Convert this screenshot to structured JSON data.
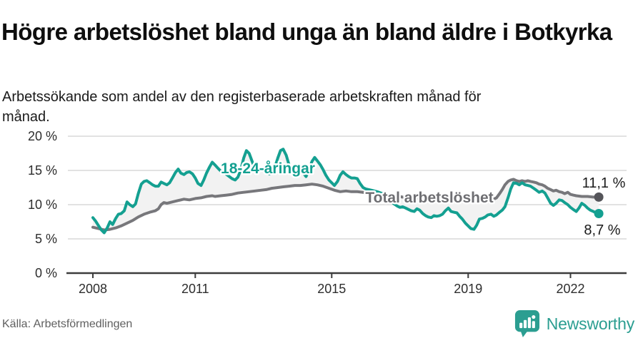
{
  "header": {
    "title": "Högre arbetslöshet bland unga än bland äldre i Botkyrka",
    "subtitle": "Arbetssökande som andel av den registerbaserade arbetskraften månad för månad."
  },
  "footer": {
    "source": "Källa: Arbetsförmedlingen",
    "brand": "Newsworthy"
  },
  "colors": {
    "accent_teal": "#14a091",
    "line_gray": "#77777b",
    "dot_gray": "#55555a",
    "label_gray": "#6e6e72",
    "band_fill": "#f2f2f2",
    "gridline": "#d9d9d9",
    "axis": "#3c3c3c",
    "brand_teal": "#2b9e91"
  },
  "chart_data": {
    "type": "line",
    "title": "Högre arbetslöshet bland unga än bland äldre i Botkyrka",
    "subtitle": "Arbetssökande som andel av den registerbaserade arbetskraften månad för månad.",
    "xlabel": "",
    "ylabel": "",
    "ylim": [
      0,
      20
    ],
    "xlim": [
      2008,
      2022.95
    ],
    "grid": true,
    "legend_position": "inline-labels",
    "y_tick_labels": [
      "20 %",
      "15 %",
      "10 %",
      "5 %",
      "0 %"
    ],
    "y_tick_values": [
      20,
      15,
      10,
      5,
      0
    ],
    "x_tick_labels": [
      "2008",
      "2011",
      "2015",
      "2019",
      "2022"
    ],
    "x_tick_years": [
      2008,
      2011,
      2015,
      2019,
      2022
    ],
    "series": [
      {
        "name": "18-24-åringar",
        "color": "#14a091",
        "dot_color": "#14a091",
        "end_label": "8,7 %",
        "end_value": 8.7,
        "points": [
          [
            2008.0,
            8.1
          ],
          [
            2008.08,
            7.6
          ],
          [
            2008.17,
            6.9
          ],
          [
            2008.25,
            6.3
          ],
          [
            2008.33,
            5.9
          ],
          [
            2008.42,
            6.6
          ],
          [
            2008.5,
            7.5
          ],
          [
            2008.58,
            7.1
          ],
          [
            2008.67,
            8.0
          ],
          [
            2008.75,
            8.6
          ],
          [
            2008.83,
            8.7
          ],
          [
            2008.92,
            9.1
          ],
          [
            2009.0,
            10.4
          ],
          [
            2009.08,
            10.0
          ],
          [
            2009.17,
            9.7
          ],
          [
            2009.25,
            10.1
          ],
          [
            2009.33,
            11.6
          ],
          [
            2009.42,
            13.0
          ],
          [
            2009.5,
            13.4
          ],
          [
            2009.58,
            13.5
          ],
          [
            2009.67,
            13.2
          ],
          [
            2009.75,
            12.9
          ],
          [
            2009.83,
            12.7
          ],
          [
            2009.92,
            12.7
          ],
          [
            2010.0,
            13.3
          ],
          [
            2010.08,
            13.1
          ],
          [
            2010.17,
            12.9
          ],
          [
            2010.25,
            13.2
          ],
          [
            2010.33,
            13.9
          ],
          [
            2010.42,
            14.7
          ],
          [
            2010.5,
            15.2
          ],
          [
            2010.58,
            14.6
          ],
          [
            2010.67,
            14.4
          ],
          [
            2010.75,
            14.7
          ],
          [
            2010.83,
            14.8
          ],
          [
            2010.92,
            14.5
          ],
          [
            2011.0,
            13.9
          ],
          [
            2011.08,
            13.1
          ],
          [
            2011.17,
            12.8
          ],
          [
            2011.25,
            13.6
          ],
          [
            2011.33,
            14.6
          ],
          [
            2011.42,
            15.5
          ],
          [
            2011.5,
            16.2
          ],
          [
            2011.58,
            15.8
          ],
          [
            2011.67,
            15.3
          ],
          [
            2011.75,
            14.9
          ],
          [
            2011.83,
            14.7
          ],
          [
            2011.92,
            14.4
          ],
          [
            2012.0,
            14.1
          ],
          [
            2012.08,
            13.8
          ],
          [
            2012.17,
            13.6
          ],
          [
            2012.25,
            14.0
          ],
          [
            2012.33,
            15.0
          ],
          [
            2012.42,
            16.8
          ],
          [
            2012.5,
            17.9
          ],
          [
            2012.58,
            17.5
          ],
          [
            2012.67,
            16.3
          ],
          [
            2012.75,
            15.2
          ],
          [
            2012.83,
            14.8
          ],
          [
            2012.92,
            15.1
          ],
          [
            2013.0,
            15.0
          ],
          [
            2013.08,
            14.8
          ],
          [
            2013.17,
            14.5
          ],
          [
            2013.25,
            14.6
          ],
          [
            2013.33,
            15.4
          ],
          [
            2013.42,
            16.8
          ],
          [
            2013.5,
            17.9
          ],
          [
            2013.58,
            18.1
          ],
          [
            2013.67,
            17.2
          ],
          [
            2013.75,
            15.8
          ],
          [
            2013.83,
            14.9
          ],
          [
            2013.92,
            15.1
          ],
          [
            2014.0,
            15.3
          ],
          [
            2014.08,
            15.0
          ],
          [
            2014.17,
            14.6
          ],
          [
            2014.25,
            14.1
          ],
          [
            2014.33,
            15.0
          ],
          [
            2014.42,
            16.3
          ],
          [
            2014.5,
            16.9
          ],
          [
            2014.58,
            16.4
          ],
          [
            2014.67,
            15.8
          ],
          [
            2014.75,
            15.1
          ],
          [
            2014.83,
            14.3
          ],
          [
            2014.92,
            13.6
          ],
          [
            2015.0,
            13.2
          ],
          [
            2015.08,
            12.8
          ],
          [
            2015.17,
            13.4
          ],
          [
            2015.25,
            14.3
          ],
          [
            2015.33,
            14.8
          ],
          [
            2015.42,
            14.4
          ],
          [
            2015.5,
            14.1
          ],
          [
            2015.58,
            13.9
          ],
          [
            2015.67,
            13.9
          ],
          [
            2015.75,
            13.8
          ],
          [
            2015.83,
            13.1
          ],
          [
            2015.92,
            12.5
          ],
          [
            2016.0,
            12.3
          ],
          [
            2016.17,
            12.1
          ],
          [
            2016.33,
            11.9
          ],
          [
            2016.5,
            11.6
          ],
          [
            2016.67,
            10.8
          ],
          [
            2016.83,
            10.1
          ],
          [
            2016.92,
            9.8
          ],
          [
            2017.0,
            9.6
          ],
          [
            2017.08,
            9.7
          ],
          [
            2017.17,
            9.5
          ],
          [
            2017.25,
            9.3
          ],
          [
            2017.33,
            9.1
          ],
          [
            2017.42,
            9.0
          ],
          [
            2017.5,
            9.4
          ],
          [
            2017.58,
            9.2
          ],
          [
            2017.67,
            8.7
          ],
          [
            2017.75,
            8.4
          ],
          [
            2017.83,
            8.2
          ],
          [
            2017.92,
            8.1
          ],
          [
            2018.0,
            8.4
          ],
          [
            2018.08,
            8.3
          ],
          [
            2018.17,
            8.4
          ],
          [
            2018.25,
            8.6
          ],
          [
            2018.33,
            9.1
          ],
          [
            2018.42,
            9.5
          ],
          [
            2018.5,
            9.0
          ],
          [
            2018.58,
            8.9
          ],
          [
            2018.67,
            8.8
          ],
          [
            2018.75,
            8.3
          ],
          [
            2018.83,
            7.9
          ],
          [
            2018.92,
            7.3
          ],
          [
            2019.0,
            6.9
          ],
          [
            2019.08,
            6.5
          ],
          [
            2019.17,
            6.4
          ],
          [
            2019.25,
            7.0
          ],
          [
            2019.33,
            7.9
          ],
          [
            2019.42,
            8.0
          ],
          [
            2019.5,
            8.2
          ],
          [
            2019.58,
            8.5
          ],
          [
            2019.67,
            8.6
          ],
          [
            2019.75,
            8.3
          ],
          [
            2019.83,
            8.5
          ],
          [
            2019.92,
            8.9
          ],
          [
            2020.0,
            9.2
          ],
          [
            2020.08,
            9.7
          ],
          [
            2020.17,
            11.0
          ],
          [
            2020.25,
            12.3
          ],
          [
            2020.33,
            13.2
          ],
          [
            2020.42,
            13.1
          ],
          [
            2020.5,
            12.9
          ],
          [
            2020.58,
            13.2
          ],
          [
            2020.67,
            12.9
          ],
          [
            2020.75,
            12.8
          ],
          [
            2020.83,
            12.7
          ],
          [
            2020.92,
            12.4
          ],
          [
            2021.0,
            12.1
          ],
          [
            2021.08,
            11.8
          ],
          [
            2021.17,
            12.0
          ],
          [
            2021.25,
            11.7
          ],
          [
            2021.33,
            11.0
          ],
          [
            2021.42,
            10.2
          ],
          [
            2021.5,
            9.9
          ],
          [
            2021.58,
            10.2
          ],
          [
            2021.67,
            10.7
          ],
          [
            2021.75,
            10.6
          ],
          [
            2021.83,
            10.3
          ],
          [
            2021.92,
            10.0
          ],
          [
            2022.0,
            9.6
          ],
          [
            2022.08,
            9.3
          ],
          [
            2022.17,
            9.0
          ],
          [
            2022.25,
            9.5
          ],
          [
            2022.33,
            10.2
          ],
          [
            2022.42,
            9.9
          ],
          [
            2022.5,
            9.5
          ],
          [
            2022.58,
            9.2
          ],
          [
            2022.67,
            9.0
          ],
          [
            2022.75,
            8.8
          ],
          [
            2022.83,
            8.7
          ]
        ]
      },
      {
        "name": "Total arbetslöshet",
        "color": "#77777b",
        "dot_color": "#55555a",
        "end_label": "11,1 %",
        "end_value": 11.1,
        "points": [
          [
            2008.0,
            6.7
          ],
          [
            2008.17,
            6.5
          ],
          [
            2008.33,
            6.3
          ],
          [
            2008.5,
            6.4
          ],
          [
            2008.67,
            6.6
          ],
          [
            2008.83,
            6.9
          ],
          [
            2009.0,
            7.3
          ],
          [
            2009.17,
            7.7
          ],
          [
            2009.33,
            8.2
          ],
          [
            2009.5,
            8.6
          ],
          [
            2009.67,
            8.9
          ],
          [
            2009.83,
            9.1
          ],
          [
            2009.92,
            9.4
          ],
          [
            2010.0,
            10.0
          ],
          [
            2010.08,
            10.3
          ],
          [
            2010.17,
            10.2
          ],
          [
            2010.33,
            10.4
          ],
          [
            2010.5,
            10.6
          ],
          [
            2010.67,
            10.8
          ],
          [
            2010.83,
            10.7
          ],
          [
            2011.0,
            10.9
          ],
          [
            2011.17,
            11.0
          ],
          [
            2011.33,
            11.2
          ],
          [
            2011.5,
            11.3
          ],
          [
            2011.58,
            11.2
          ],
          [
            2011.75,
            11.3
          ],
          [
            2011.92,
            11.4
          ],
          [
            2012.08,
            11.5
          ],
          [
            2012.25,
            11.7
          ],
          [
            2012.42,
            11.8
          ],
          [
            2012.58,
            11.9
          ],
          [
            2012.75,
            12.0
          ],
          [
            2012.92,
            12.1
          ],
          [
            2013.08,
            12.2
          ],
          [
            2013.25,
            12.4
          ],
          [
            2013.42,
            12.5
          ],
          [
            2013.58,
            12.6
          ],
          [
            2013.75,
            12.7
          ],
          [
            2013.92,
            12.8
          ],
          [
            2014.08,
            12.8
          ],
          [
            2014.25,
            12.9
          ],
          [
            2014.42,
            13.0
          ],
          [
            2014.58,
            12.9
          ],
          [
            2014.75,
            12.7
          ],
          [
            2014.92,
            12.4
          ],
          [
            2015.08,
            12.1
          ],
          [
            2015.25,
            11.9
          ],
          [
            2015.42,
            12.0
          ],
          [
            2015.58,
            11.9
          ],
          [
            2015.75,
            11.9
          ],
          [
            2015.92,
            11.8
          ],
          [
            2016.08,
            11.7
          ],
          [
            2016.33,
            11.6
          ],
          [
            2016.58,
            11.4
          ],
          [
            2016.83,
            11.3
          ],
          [
            2017.08,
            11.1
          ],
          [
            2017.33,
            11.0
          ],
          [
            2017.58,
            10.9
          ],
          [
            2017.83,
            10.8
          ],
          [
            2018.08,
            10.9
          ],
          [
            2018.33,
            10.9
          ],
          [
            2018.58,
            10.8
          ],
          [
            2018.83,
            10.7
          ],
          [
            2019.0,
            10.6
          ],
          [
            2019.17,
            10.5
          ],
          [
            2019.33,
            10.4
          ],
          [
            2019.5,
            10.5
          ],
          [
            2019.67,
            10.6
          ],
          [
            2019.83,
            11.0
          ],
          [
            2019.92,
            11.6
          ],
          [
            2020.0,
            12.2
          ],
          [
            2020.08,
            12.9
          ],
          [
            2020.17,
            13.4
          ],
          [
            2020.25,
            13.6
          ],
          [
            2020.33,
            13.7
          ],
          [
            2020.42,
            13.5
          ],
          [
            2020.5,
            13.4
          ],
          [
            2020.58,
            13.5
          ],
          [
            2020.67,
            13.4
          ],
          [
            2020.75,
            13.5
          ],
          [
            2020.83,
            13.4
          ],
          [
            2020.92,
            13.3
          ],
          [
            2021.0,
            13.2
          ],
          [
            2021.08,
            13.0
          ],
          [
            2021.17,
            12.9
          ],
          [
            2021.25,
            12.7
          ],
          [
            2021.33,
            12.4
          ],
          [
            2021.42,
            12.2
          ],
          [
            2021.5,
            12.0
          ],
          [
            2021.58,
            12.1
          ],
          [
            2021.67,
            11.9
          ],
          [
            2021.75,
            11.8
          ],
          [
            2021.83,
            11.6
          ],
          [
            2021.92,
            11.8
          ],
          [
            2022.0,
            11.5
          ],
          [
            2022.08,
            11.4
          ],
          [
            2022.17,
            11.3
          ],
          [
            2022.33,
            11.2
          ],
          [
            2022.5,
            11.2
          ],
          [
            2022.67,
            11.1
          ],
          [
            2022.83,
            11.1
          ]
        ]
      }
    ]
  }
}
